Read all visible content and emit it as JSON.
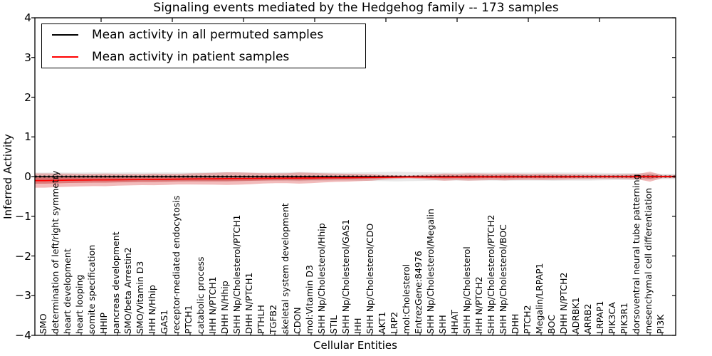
{
  "figure": {
    "title": "Signaling events mediated by the Hedgehog family -- 173 samples"
  },
  "legend": {
    "items": [
      {
        "label": "Mean activity in all permuted samples",
        "color": "#000000"
      },
      {
        "label": "Mean activity in patient samples",
        "color": "#ff0000"
      }
    ]
  },
  "chart_data": {
    "type": "line",
    "title": "Signaling events mediated by the Hedgehog family -- 173 samples",
    "xlabel": "Cellular Entities",
    "ylabel": "Inferred Activity",
    "ylim": [
      -4,
      4
    ],
    "ytick_values": [
      4,
      3,
      2,
      1,
      0,
      -1,
      -2,
      -3,
      -4
    ],
    "ytick_labels": [
      "4",
      "3",
      "2",
      "1",
      "0",
      "−1",
      "−2",
      "−3",
      "−4"
    ],
    "grid": false,
    "legend_position": "upper left",
    "categories": [
      "SMO",
      "determination of left/right symmetry",
      "heart development",
      "heart looping",
      "somite specification",
      "HHIP",
      "pancreas development",
      "SMO/beta Arrestin2",
      "SMO/Vitamin D3",
      "IHH N/Hhip",
      "GAS1",
      "receptor-mediated endocytosis",
      "PTCH1",
      "catabolic process",
      "IHH N/PTCH1",
      "DHH N/Hhip",
      "SHH Np/Cholesterol/PTCH1",
      "DHH N/PTCH1",
      "PTHLH",
      "TGFB2",
      "skeletal system development",
      "CDON",
      "mol:Vitamin D3",
      "SHH Np/Cholesterol/Hhip",
      "STIL",
      "SHH Np/Cholesterol/GAS1",
      "IHH",
      "SHH Np/Cholesterol/CDO",
      "AKT1",
      "LRP2",
      "mol:Cholesterol",
      "EntrezGene:84976",
      "SHH Np/Cholesterol/Megalin",
      "SHH",
      "HHAT",
      "SHH Np/Cholesterol",
      "IHH N/PTCH2",
      "SHH Np/Cholesterol/PTCH2",
      "SHH Np/Cholesterol/BOC",
      "DHH",
      "PTCH2",
      "Megalin/LRPAP1",
      "BOC",
      "DHH N/PTCH2",
      "ADRBK1",
      "ARRB2",
      "LRPAP1",
      "PIK3CA",
      "PIK3R1",
      "dorsoventral neural tube patterning",
      "mesenchymal cell differentiation",
      "PI3K"
    ],
    "series": [
      {
        "name": "Mean activity in all permuted samples",
        "color": "#000000",
        "style": "solid-with-dotted-overlay",
        "constant": 0
      },
      {
        "name": "Mean activity in patient samples",
        "color": "#ff0000",
        "values": [
          -0.1,
          -0.095,
          -0.09,
          -0.088,
          -0.085,
          -0.082,
          -0.08,
          -0.078,
          -0.075,
          -0.072,
          -0.07,
          -0.065,
          -0.06,
          -0.058,
          -0.055,
          -0.052,
          -0.05,
          -0.048,
          -0.045,
          -0.042,
          -0.04,
          -0.038,
          -0.035,
          -0.032,
          -0.03,
          -0.028,
          -0.025,
          -0.022,
          -0.018,
          -0.014,
          -0.01,
          -0.01,
          -0.012,
          -0.012,
          -0.01,
          -0.01,
          -0.008,
          -0.008,
          -0.008,
          -0.006,
          -0.006,
          -0.006,
          -0.005,
          -0.005,
          -0.004,
          -0.004,
          -0.003,
          -0.003,
          -0.003,
          -0.002,
          -0.002,
          0.0
        ]
      }
    ],
    "bands": [
      {
        "name": "permuted-samples-spread",
        "color": "#9a9a9a",
        "opacity": 0.22,
        "center": "zero",
        "half_widths": [
          0.1,
          0.105,
          0.1,
          0.1,
          0.105,
          0.1,
          0.1,
          0.105,
          0.1,
          0.1,
          0.105,
          0.1,
          0.1,
          0.105,
          0.11,
          0.11,
          0.105,
          0.1,
          0.1,
          0.105,
          0.11,
          0.115,
          0.11,
          0.105,
          0.1,
          0.1,
          0.105,
          0.11,
          0.115,
          0.12,
          0.115,
          0.11,
          0.105,
          0.1,
          0.1,
          0.105,
          0.1,
          0.1,
          0.105,
          0.1,
          0.1,
          0.1,
          0.105,
          0.1,
          0.1,
          0.1,
          0.095,
          0.09,
          0.09,
          0.09,
          0.085,
          0.07
        ]
      },
      {
        "name": "patient-samples-spread-outer",
        "color": "#d62c2c",
        "opacity": 0.32,
        "center": "patient-mean",
        "half_widths": [
          0.18,
          0.17,
          0.165,
          0.16,
          0.155,
          0.16,
          0.15,
          0.145,
          0.14,
          0.145,
          0.14,
          0.135,
          0.14,
          0.145,
          0.15,
          0.16,
          0.155,
          0.145,
          0.13,
          0.125,
          0.125,
          0.14,
          0.13,
          0.115,
          0.105,
          0.1,
          0.09,
          0.08,
          0.06,
          0.045,
          0.035,
          0.05,
          0.07,
          0.09,
          0.08,
          0.09,
          0.085,
          0.08,
          0.085,
          0.08,
          0.075,
          0.08,
          0.075,
          0.07,
          0.065,
          0.06,
          0.055,
          0.055,
          0.06,
          0.07,
          0.125,
          0.04
        ]
      },
      {
        "name": "patient-samples-spread-inner",
        "color": "#c01818",
        "opacity": 0.4,
        "center": "patient-mean",
        "half_widths": [
          0.08,
          0.075,
          0.072,
          0.07,
          0.068,
          0.07,
          0.066,
          0.063,
          0.06,
          0.062,
          0.06,
          0.058,
          0.06,
          0.062,
          0.065,
          0.068,
          0.065,
          0.06,
          0.055,
          0.052,
          0.052,
          0.058,
          0.054,
          0.048,
          0.044,
          0.042,
          0.038,
          0.034,
          0.027,
          0.02,
          0.016,
          0.022,
          0.03,
          0.038,
          0.034,
          0.038,
          0.036,
          0.034,
          0.036,
          0.034,
          0.032,
          0.034,
          0.032,
          0.03,
          0.028,
          0.026,
          0.024,
          0.024,
          0.026,
          0.03,
          0.052,
          0.018
        ]
      }
    ]
  }
}
